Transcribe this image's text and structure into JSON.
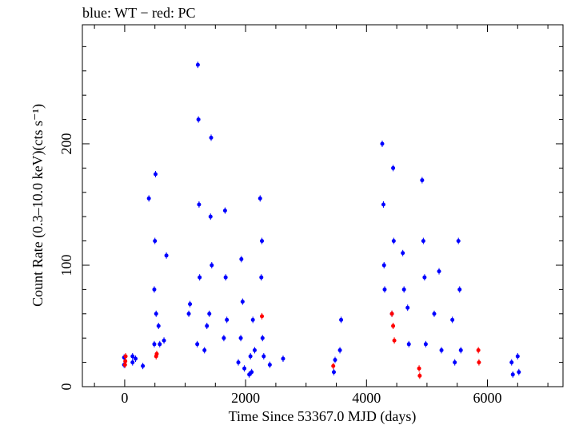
{
  "chart_data": {
    "type": "scatter",
    "title": "blue: WT − red: PC",
    "xlabel": "Time Since 53367.0 MJD (days)",
    "ylabel": "Count Rate (0.3–10.0 keV)(cts s⁻¹)",
    "xlim": [
      -700,
      7250
    ],
    "ylim": [
      0,
      298
    ],
    "xticks": [
      0,
      2000,
      4000,
      6000
    ],
    "yticks": [
      0,
      100,
      200
    ],
    "grid": false,
    "series": [
      {
        "name": "WT",
        "color": "#0000ff",
        "points": [
          [
            -10,
            18
          ],
          [
            -10,
            24
          ],
          [
            130,
            20
          ],
          [
            130,
            25
          ],
          [
            180,
            23
          ],
          [
            300,
            17
          ],
          [
            400,
            155
          ],
          [
            490,
            35
          ],
          [
            490,
            80
          ],
          [
            500,
            120
          ],
          [
            510,
            175
          ],
          [
            520,
            60
          ],
          [
            560,
            50
          ],
          [
            580,
            35
          ],
          [
            650,
            38
          ],
          [
            690,
            108
          ],
          [
            1060,
            60
          ],
          [
            1080,
            68
          ],
          [
            1200,
            35
          ],
          [
            1210,
            265
          ],
          [
            1220,
            220
          ],
          [
            1230,
            150
          ],
          [
            1240,
            90
          ],
          [
            1320,
            30
          ],
          [
            1360,
            50
          ],
          [
            1400,
            60
          ],
          [
            1420,
            140
          ],
          [
            1430,
            205
          ],
          [
            1440,
            100
          ],
          [
            1640,
            40
          ],
          [
            1660,
            145
          ],
          [
            1670,
            90
          ],
          [
            1690,
            55
          ],
          [
            1880,
            20
          ],
          [
            1920,
            40
          ],
          [
            1930,
            105
          ],
          [
            1950,
            70
          ],
          [
            1980,
            15
          ],
          [
            2060,
            10
          ],
          [
            2080,
            25
          ],
          [
            2100,
            12
          ],
          [
            2120,
            55
          ],
          [
            2150,
            30
          ],
          [
            2240,
            155
          ],
          [
            2260,
            90
          ],
          [
            2270,
            120
          ],
          [
            2280,
            40
          ],
          [
            2300,
            25
          ],
          [
            2400,
            18
          ],
          [
            2620,
            23
          ],
          [
            3460,
            12
          ],
          [
            3480,
            22
          ],
          [
            3560,
            30
          ],
          [
            3580,
            55
          ],
          [
            4260,
            200
          ],
          [
            4280,
            150
          ],
          [
            4290,
            100
          ],
          [
            4300,
            80
          ],
          [
            4420,
            60
          ],
          [
            4440,
            180
          ],
          [
            4450,
            120
          ],
          [
            4600,
            110
          ],
          [
            4620,
            80
          ],
          [
            4680,
            65
          ],
          [
            4700,
            35
          ],
          [
            4920,
            170
          ],
          [
            4940,
            120
          ],
          [
            4960,
            90
          ],
          [
            4980,
            35
          ],
          [
            5120,
            60
          ],
          [
            5200,
            95
          ],
          [
            5240,
            30
          ],
          [
            5420,
            55
          ],
          [
            5460,
            20
          ],
          [
            5520,
            120
          ],
          [
            5540,
            80
          ],
          [
            5560,
            30
          ],
          [
            6400,
            20
          ],
          [
            6420,
            10
          ],
          [
            6500,
            25
          ],
          [
            6520,
            12
          ]
        ]
      },
      {
        "name": "PC",
        "color": "#ff0000",
        "points": [
          [
            10,
            21
          ],
          [
            15,
            25
          ],
          [
            5,
            18
          ],
          [
            520,
            25
          ],
          [
            530,
            27
          ],
          [
            2270,
            58
          ],
          [
            3450,
            17
          ],
          [
            4420,
            60
          ],
          [
            4440,
            50
          ],
          [
            4460,
            38
          ],
          [
            4870,
            15
          ],
          [
            4880,
            9
          ],
          [
            5850,
            30
          ],
          [
            5860,
            20
          ]
        ]
      }
    ]
  }
}
